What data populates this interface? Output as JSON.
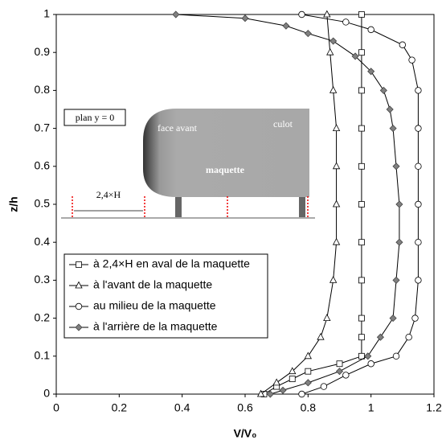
{
  "chart_data": {
    "type": "line",
    "xlabel": "V/V₀",
    "ylabel": "z/h",
    "xlim": [
      0,
      1.2
    ],
    "xticks": [
      0,
      0.2,
      0.4,
      0.6,
      0.8,
      1,
      1.2
    ],
    "ylim": [
      0,
      1
    ],
    "yticks": [
      0,
      0.1,
      0.2,
      0.3,
      0.4,
      0.5,
      0.6,
      0.7,
      0.8,
      0.9,
      1
    ],
    "grid": false,
    "legend": "lower left",
    "series": [
      {
        "name": "à 2,4×H en aval de la maquette",
        "marker": "square",
        "color": "#000000",
        "x": [
          0.66,
          0.7,
          0.75,
          0.8,
          0.9,
          0.97,
          0.97,
          0.97,
          0.97,
          0.97,
          0.97,
          0.97,
          0.97,
          0.97,
          0.97,
          0.97
        ],
        "y": [
          0,
          0.02,
          0.04,
          0.06,
          0.08,
          0.1,
          0.15,
          0.2,
          0.3,
          0.4,
          0.5,
          0.6,
          0.7,
          0.8,
          0.9,
          1
        ]
      },
      {
        "name": "à l'avant de la maquette",
        "marker": "triangle",
        "color": "#000000",
        "x": [
          0.65,
          0.7,
          0.75,
          0.8,
          0.84,
          0.86,
          0.88,
          0.89,
          0.89,
          0.89,
          0.89,
          0.88,
          0.87,
          0.86
        ],
        "y": [
          0,
          0.03,
          0.06,
          0.1,
          0.15,
          0.2,
          0.3,
          0.4,
          0.5,
          0.6,
          0.7,
          0.8,
          0.9,
          1
        ]
      },
      {
        "name": "au milieu de la maquette",
        "marker": "circle",
        "color": "#000000",
        "x": [
          0.78,
          0.85,
          0.92,
          1.0,
          1.08,
          1.12,
          1.14,
          1.15,
          1.15,
          1.15,
          1.15,
          1.15,
          1.15,
          1.13,
          1.1,
          1.0,
          0.92,
          0.78
        ],
        "y": [
          0,
          0.02,
          0.05,
          0.08,
          0.1,
          0.15,
          0.2,
          0.3,
          0.4,
          0.5,
          0.6,
          0.7,
          0.8,
          0.88,
          0.92,
          0.96,
          0.98,
          1
        ]
      },
      {
        "name": "à l'arrière de la maquette",
        "marker": "diamond",
        "color": "#808080",
        "x": [
          0.68,
          0.72,
          0.8,
          0.9,
          0.99,
          1.03,
          1.07,
          1.08,
          1.09,
          1.09,
          1.08,
          1.07,
          1.06,
          1.04,
          1.0,
          0.95,
          0.88,
          0.8,
          0.73,
          0.6,
          0.38
        ],
        "y": [
          0,
          0.01,
          0.03,
          0.06,
          0.1,
          0.15,
          0.2,
          0.3,
          0.4,
          0.5,
          0.6,
          0.7,
          0.75,
          0.8,
          0.85,
          0.89,
          0.93,
          0.95,
          0.97,
          0.99,
          1
        ]
      }
    ]
  },
  "inset": {
    "plane": "plan y = 0",
    "front": "face avant",
    "rear": "culot",
    "model": "maquette",
    "distance": "2,4×H"
  }
}
